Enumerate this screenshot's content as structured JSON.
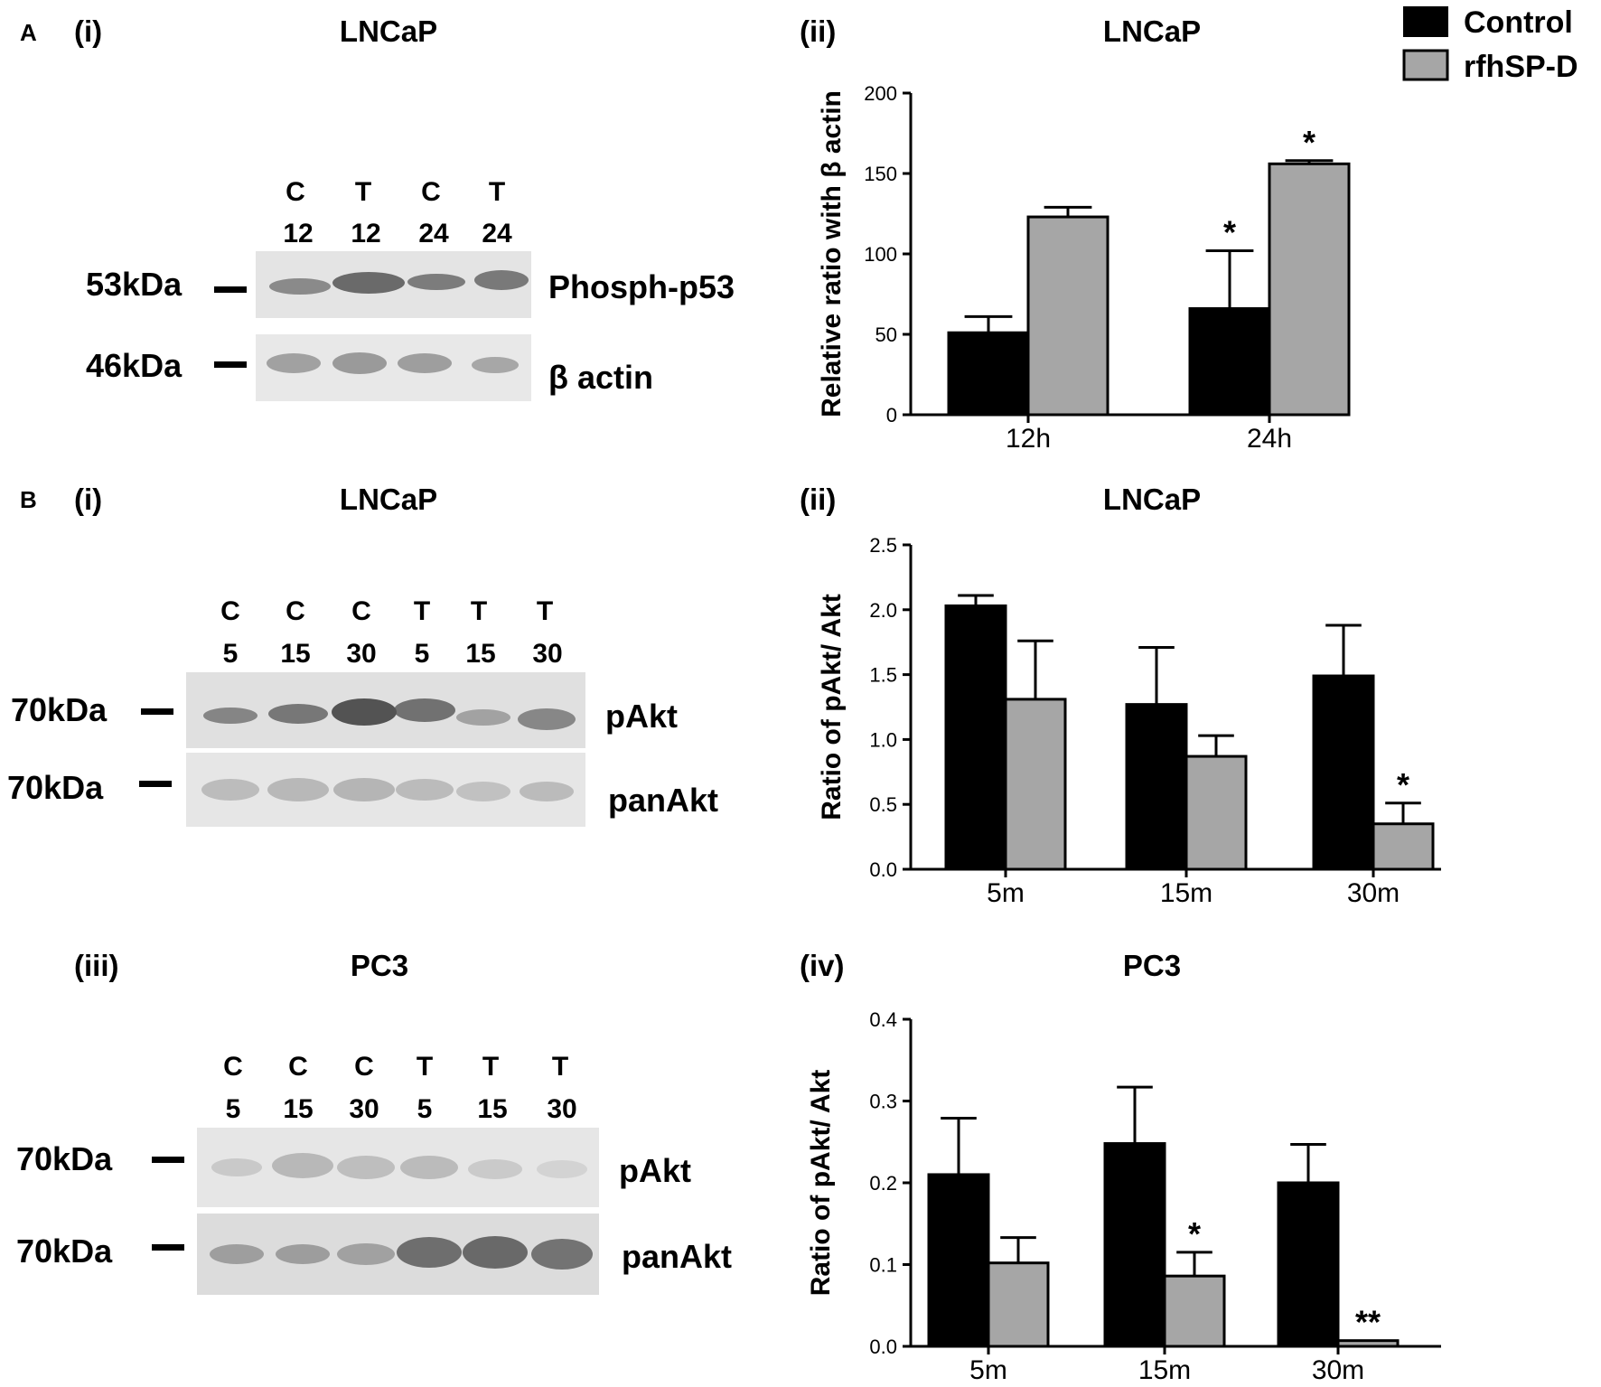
{
  "colors": {
    "control": "#000000",
    "rfhspd": "#a6a6a6",
    "axis": "#000000"
  },
  "legend": {
    "placement": "top-right",
    "items": [
      "Control",
      "rfhSP-D"
    ]
  },
  "panel_a": {
    "letter": "A",
    "blot": {
      "index": "(i)",
      "title": "LNCaP",
      "lanes": [
        {
          "cond": "C",
          "time": "12"
        },
        {
          "cond": "T",
          "time": "12"
        },
        {
          "cond": "C",
          "time": "24"
        },
        {
          "cond": "T",
          "time": "24"
        }
      ],
      "bands": [
        {
          "marker": "53kDa",
          "label": "Phosph-p53"
        },
        {
          "marker": "46kDa",
          "label": "β actin"
        }
      ]
    },
    "chart_index": "(ii)",
    "chart_title": "LNCaP"
  },
  "panel_b": {
    "letter": "B",
    "blot1": {
      "index": "(i)",
      "title": "LNCaP",
      "lanes": [
        {
          "cond": "C",
          "time": "5"
        },
        {
          "cond": "C",
          "time": "15"
        },
        {
          "cond": "C",
          "time": "30"
        },
        {
          "cond": "T",
          "time": "5"
        },
        {
          "cond": "T",
          "time": "15"
        },
        {
          "cond": "T",
          "time": "30"
        }
      ],
      "bands": [
        {
          "marker": "70kDa",
          "label": "pAkt"
        },
        {
          "marker": "70kDa",
          "label": "panAkt"
        }
      ]
    },
    "chart1_index": "(ii)",
    "chart1_title": "LNCaP",
    "blot2": {
      "index": "(iii)",
      "title": "PC3",
      "lanes": [
        {
          "cond": "C",
          "time": "5"
        },
        {
          "cond": "C",
          "time": "15"
        },
        {
          "cond": "C",
          "time": "30"
        },
        {
          "cond": "T",
          "time": "5"
        },
        {
          "cond": "T",
          "time": "15"
        },
        {
          "cond": "T",
          "time": "30"
        }
      ],
      "bands": [
        {
          "marker": "70kDa",
          "label": "pAkt"
        },
        {
          "marker": "70kDa",
          "label": "panAkt"
        }
      ]
    },
    "chart2_index": "(iv)",
    "chart2_title": "PC3"
  },
  "chart_data": [
    {
      "type": "bar",
      "title": "LNCaP",
      "ylabel": "Relative ratio with β actin",
      "categories": [
        "12h",
        "24h"
      ],
      "series": [
        {
          "name": "Control",
          "values": [
            51,
            66
          ],
          "errors": [
            10,
            36
          ]
        },
        {
          "name": "rfhSP-D",
          "values": [
            123,
            156
          ],
          "errors": [
            6,
            2
          ]
        }
      ],
      "annotations": [
        [
          "",
          "*"
        ],
        [
          "",
          "*"
        ]
      ],
      "ylim": [
        0,
        200
      ],
      "yticks": [
        0,
        50,
        100,
        150,
        200
      ]
    },
    {
      "type": "bar",
      "title": "LNCaP",
      "ylabel": "Ratio of pAkt/ Akt",
      "categories": [
        "5m",
        "15m",
        "30m"
      ],
      "series": [
        {
          "name": "Control",
          "values": [
            2.03,
            1.27,
            1.49
          ],
          "errors": [
            0.08,
            0.44,
            0.39
          ]
        },
        {
          "name": "rfhSP-D",
          "values": [
            1.31,
            0.87,
            0.35
          ],
          "errors": [
            0.45,
            0.16,
            0.16
          ]
        }
      ],
      "annotations": [
        [
          "",
          "",
          ""
        ],
        [
          "",
          "",
          "*"
        ]
      ],
      "ylim": [
        0,
        2.5
      ],
      "yticks": [
        "0.0",
        "0.5",
        "1.0",
        "1.5",
        "2.0",
        "2.5"
      ]
    },
    {
      "type": "bar",
      "title": "PC3",
      "ylabel": "Ratio of pAkt/ Akt",
      "categories": [
        "5m",
        "15m",
        "30m"
      ],
      "series": [
        {
          "name": "Control",
          "values": [
            0.21,
            0.248,
            0.2
          ],
          "errors": [
            0.069,
            0.069,
            0.047
          ]
        },
        {
          "name": "rfhSP-D",
          "values": [
            0.102,
            0.086,
            0.007
          ],
          "errors": [
            0.031,
            0.029,
            0.0
          ]
        }
      ],
      "annotations": [
        [
          "",
          "",
          ""
        ],
        [
          "",
          "*",
          "**"
        ]
      ],
      "ylim": [
        0,
        0.4
      ],
      "yticks": [
        "0.0",
        "0.1",
        "0.2",
        "0.3",
        "0.4"
      ]
    }
  ]
}
